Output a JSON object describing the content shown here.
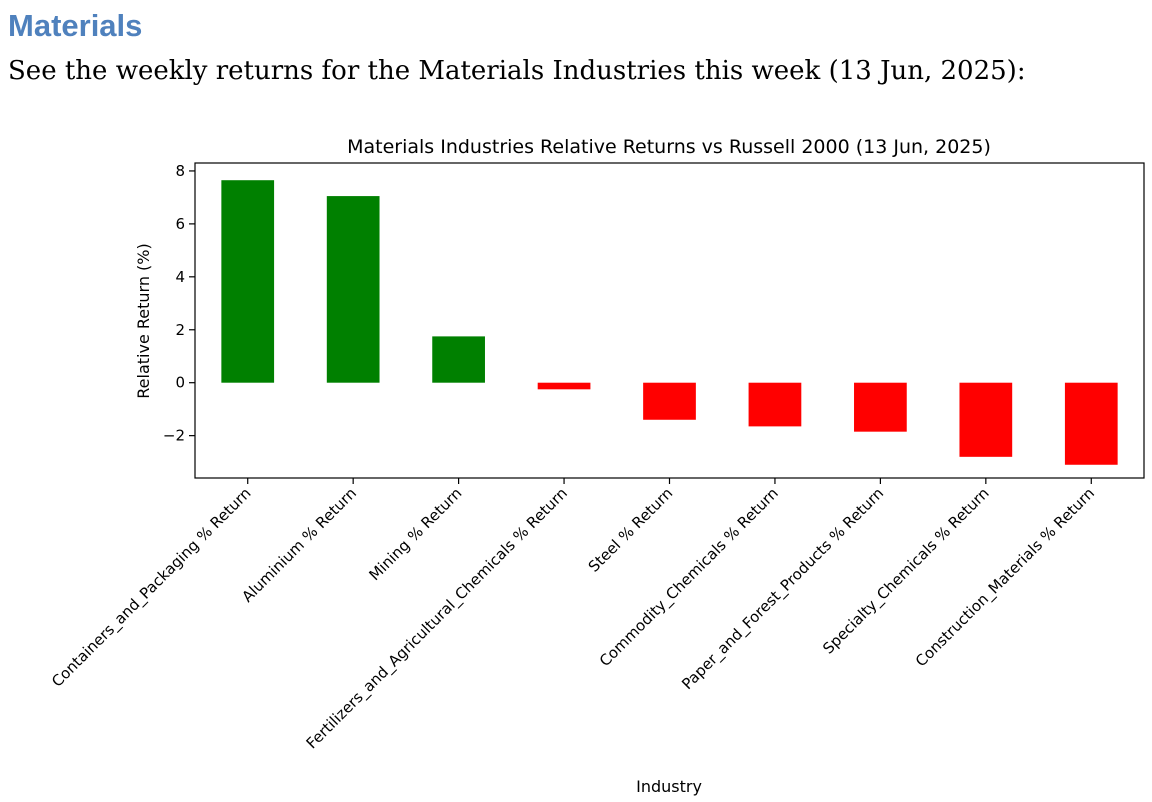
{
  "section": {
    "title": "Materials",
    "intro": "See the weekly returns for the Materials Industries this week (13 Jun, 2025):"
  },
  "colors": {
    "positive": "#008000",
    "negative": "#ff0000",
    "heading": "#4f81bd"
  },
  "chart_data": {
    "type": "bar",
    "title": "Materials Industries Relative Returns vs Russell 2000 (13 Jun, 2025)",
    "xlabel": "Industry",
    "ylabel": "Relative Return (%)",
    "ylim": [
      -3.6,
      8.3
    ],
    "yticks": [
      -2,
      0,
      2,
      4,
      6,
      8
    ],
    "ytick_labels": [
      "−2",
      "0",
      "2",
      "4",
      "6",
      "8"
    ],
    "grid": false,
    "categories": [
      "Containers_and_Packaging % Return",
      "Aluminium % Return",
      "Mining % Return",
      "Fertilizers_and_Agricultural_Chemicals % Return",
      "Steel % Return",
      "Commodity_Chemicals % Return",
      "Paper_and_Forest_Products % Return",
      "Specialty_Chemicals % Return",
      "Construction_Materials % Return"
    ],
    "values": [
      7.65,
      7.05,
      1.75,
      -0.25,
      -1.4,
      -1.65,
      -1.85,
      -2.8,
      -3.1
    ]
  }
}
